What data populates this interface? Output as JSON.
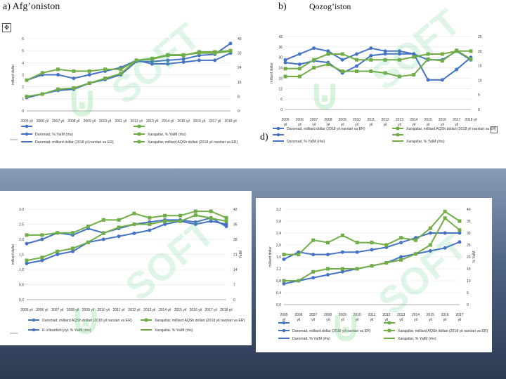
{
  "panel_labels": {
    "a": "a) Afg’oniston",
    "b": "b)",
    "b_country": "Qozog’iston",
    "d": "d)"
  },
  "anchor_icon": "move-anchor-icon",
  "watermark": {
    "text": "SOFT",
    "color": "#5ccf78"
  },
  "colors": {
    "blue": "#4472c4",
    "green": "#70ad47",
    "axis": "#999999",
    "text": "#333333"
  },
  "chart_data": [
    {
      "id": "afg",
      "type": "line",
      "categories": [
        "2005 yil",
        "2006 yil",
        "2007 yil",
        "2008 yil",
        "2009 yil",
        "2010 yil",
        "2011 yil",
        "2012 yil",
        "2013 yil",
        "2014 yil",
        "2015 yil",
        "2016 yil",
        "2017 yil",
        "2018 yil"
      ],
      "xtick_labels": [
        "2005 yil",
        "2006 yil",
        "2007 yil",
        "2008 yil",
        "2009 yil",
        "2010 yil",
        "2011 yil",
        "2012 yil",
        "2013 yil",
        "2014 yil",
        "2015 yil",
        "2016 yil",
        "2017 yil",
        "2018 yil"
      ],
      "ylabel": "milliard dollar",
      "ylim": [
        0,
        6
      ],
      "yticks": [
        "0",
        "1",
        "2",
        "3",
        "4",
        "5",
        "6"
      ],
      "y2lim": [
        0,
        40
      ],
      "y2ticks": [
        "0",
        "8",
        "16",
        "24",
        "32",
        "40"
      ],
      "series": [
        {
          "name": "Daromad, % YaIM (rhs)",
          "color": "blue",
          "axis": "right",
          "values": [
            17,
            20,
            20,
            18,
            20,
            22,
            24,
            28,
            26,
            26,
            27,
            28,
            28,
            32
          ]
        },
        {
          "name": "Daromad, milliard dollar (2018 yil narxlari va ER)",
          "color": "blue",
          "axis": "left",
          "values": [
            1.1,
            1.4,
            1.7,
            1.8,
            2.3,
            2.6,
            3.0,
            4.1,
            4.1,
            4.2,
            4.3,
            4.6,
            4.7,
            5.6
          ]
        },
        {
          "name": "Xarajatlar, % YaIM (rhs)",
          "color": "green",
          "axis": "right",
          "values": [
            17,
            21,
            23,
            22,
            22,
            23,
            23,
            28,
            29,
            31,
            31,
            32,
            32,
            33
          ]
        },
        {
          "name": "Xarajatlar, milliard AQSh dollari (2018 yil narxlari va ER)",
          "color": "green",
          "axis": "left",
          "values": [
            1.2,
            1.4,
            1.8,
            1.9,
            2.3,
            2.7,
            3.1,
            4.2,
            4.3,
            4.6,
            4.6,
            4.9,
            4.9,
            5.0
          ]
        }
      ],
      "legend": [
        {
          "label": "",
          "color": "blue",
          "marker": "circle"
        },
        {
          "label": "",
          "color": "green",
          "marker": "square"
        },
        {
          "label": "Daromad, % YaIM (rhs)",
          "color": "blue",
          "marker": "circle"
        },
        {
          "label": "Xarajatlar, % YaIM (rhs)",
          "color": "green",
          "marker": "square"
        },
        {
          "label": "Daromad, milliard dollar (2018 yil narxlari va ER)",
          "color": "blue",
          "marker": "none"
        },
        {
          "label": "Xarajatlar, milliard AQSh dollari (2018 yil narxlari va ER)",
          "color": "green",
          "marker": "square"
        }
      ],
      "note": "Manba:"
    },
    {
      "id": "kaz",
      "type": "line",
      "categories": [
        "2005",
        "2006",
        "2007",
        "2008",
        "2009",
        "2010",
        "2011",
        "2012",
        "2013",
        "2014",
        "2015",
        "2016",
        "2017",
        "2018 yil"
      ],
      "xtick_labels": [
        "2005",
        "2006",
        "2007",
        "2008",
        "2009",
        "2010",
        "2011",
        "2012",
        "2013",
        "2014",
        "2015",
        "2016",
        "2017",
        "2018 yil"
      ],
      "xtick_sub": [
        "yil",
        "yil",
        "yil",
        "yil",
        "yil",
        "yil",
        "yil",
        "yil",
        "yil",
        "yil",
        "yil",
        "yil",
        "yil",
        ""
      ],
      "ylabel": "milliard dollar",
      "ylim": [
        0,
        42
      ],
      "yticks": [
        "0",
        "6",
        "12",
        "18",
        "24",
        "30",
        "36",
        "42"
      ],
      "y2lim": [
        0,
        25
      ],
      "y2ticks": [
        "0",
        "5",
        "10",
        "15",
        "20",
        "25"
      ],
      "series": [
        {
          "name": "Daromad, milliard dollar (2018 yil narxlari va ER)",
          "color": "blue",
          "axis": "left",
          "values": [
            27,
            26,
            28,
            27,
            21,
            25,
            31,
            32,
            32,
            32,
            17,
            17,
            23,
            30
          ]
        },
        {
          "name": "Daromad, % YaIM (rhs)",
          "color": "blue",
          "axis": "right",
          "values": [
            17,
            19,
            21,
            20,
            17,
            19,
            21,
            20,
            20,
            19,
            17,
            17,
            20,
            17
          ]
        },
        {
          "name": "Xarajatlar, milliard AQSh dollari (2018 yil narxlari va ER)",
          "color": "green",
          "axis": "left",
          "values": [
            19,
            19,
            24,
            26,
            22,
            22,
            22,
            21,
            19,
            20,
            29,
            28,
            34,
            29
          ]
        },
        {
          "name": "Xarajatlar, % YaIM (rhs)",
          "color": "green",
          "axis": "right",
          "values": [
            14,
            14,
            17,
            19,
            19,
            17,
            17,
            17,
            17,
            18,
            19,
            19,
            20,
            20
          ]
        }
      ],
      "legend": [
        {
          "label": "Daromad, milliard dollar (2018 yil narxlari va ER)",
          "color": "blue",
          "marker": "circle"
        },
        {
          "label": "Xarajatlar, milliard AQSh dollari (2018 yil narxlari va ER)",
          "color": "green",
          "marker": "square"
        },
        {
          "label": "",
          "color": "blue",
          "marker": "circle"
        },
        {
          "label": "",
          "color": "green",
          "marker": "square"
        },
        {
          "label": "Daromad, % YaIM (rhs)",
          "color": "blue",
          "marker": "none"
        },
        {
          "label": "Xarajatlar, % YaIM (rhs)",
          "color": "green",
          "marker": "none"
        }
      ],
      "note": ""
    },
    {
      "id": "c",
      "type": "line",
      "categories": [
        "2005 yil",
        "2006 yil",
        "2007 yil",
        "2008 yil",
        "2009 yil",
        "2010 yil",
        "2011 yil",
        "2012 yil",
        "2013 yil",
        "2014 yil",
        "2015 yil",
        "2016 yil",
        "2017 yil",
        "2018 yil"
      ],
      "xtick_labels": [
        "2005 yil",
        "2006 yil",
        "2007 yil",
        "2008 yil",
        "2009 yil",
        "2010 yil",
        "2011 yil",
        "2012 yil",
        "2013 yil",
        "2014 yil",
        "2015 yil",
        "2016 yil",
        "2017 yil",
        "2018 yil"
      ],
      "ylabel": "milliard dollar",
      "ylim": [
        0,
        3.0
      ],
      "yticks": [
        "0,0",
        "0,5",
        "1,0",
        "1,5",
        "2,0",
        "2,5",
        "3,0"
      ],
      "y2lim": [
        0,
        42
      ],
      "y2ticks": [
        "0",
        "7",
        "14",
        "21",
        "28",
        "35",
        "42"
      ],
      "y2label": "YaIM",
      "series": [
        {
          "name": "Daromad, milliard AQSh dollari (2018 yil narxlari va ER)",
          "color": "blue",
          "axis": "left",
          "values": [
            1.2,
            1.3,
            1.5,
            1.6,
            1.9,
            2.0,
            2.1,
            2.2,
            2.3,
            2.5,
            2.6,
            2.5,
            2.6,
            2.5
          ]
        },
        {
          "name": "R o’tkazilish joyi, % YaIM (rhs)",
          "color": "blue",
          "axis": "right",
          "values": [
            26,
            28,
            31,
            30,
            33,
            31,
            33,
            35,
            36,
            37,
            37,
            36,
            38,
            34
          ]
        },
        {
          "name": "Xarajatlar, milliard AQSh dollari (2018 yil narxlari va ER)",
          "color": "green",
          "axis": "left",
          "values": [
            1.3,
            1.4,
            1.6,
            1.7,
            1.9,
            2.2,
            2.4,
            2.5,
            2.5,
            2.6,
            2.6,
            2.8,
            2.7,
            2.6
          ]
        },
        {
          "name": "Xarajatlar, % YaIM (rhs)",
          "color": "green",
          "axis": "right",
          "values": [
            30,
            30,
            31,
            31,
            34,
            37,
            37,
            40,
            38,
            39,
            39,
            41,
            41,
            38
          ]
        }
      ],
      "legend": [
        {
          "label": "Daromad, milliard AQSh dollari (2018 yil narxlari va ER)",
          "color": "blue",
          "marker": "circle"
        },
        {
          "label": "Xarajatlar, milliard AQSh dollari (2018 yil narxlari va ER)",
          "color": "green",
          "marker": "square"
        },
        {
          "label": "R o’tkazilish joyi, % YaIM (rhs)",
          "color": "blue",
          "marker": "circle"
        },
        {
          "label": "Xarajatlar, % YaIM (rhs)",
          "color": "green",
          "marker": "none"
        }
      ],
      "note": "Manba:"
    },
    {
      "id": "d",
      "type": "line",
      "categories": [
        "2005",
        "2006",
        "2007",
        "2008",
        "2009",
        "2010",
        "2011",
        "2012",
        "2013",
        "2014",
        "2015",
        "2016",
        "2017"
      ],
      "xtick_labels": [
        "2005",
        "2006",
        "2007",
        "2008",
        "2009",
        "2010",
        "2011",
        "2012",
        "2013",
        "2014",
        "2015",
        "2016",
        "2017"
      ],
      "xtick_sub": [
        "yil",
        "yil",
        "yil",
        "yil",
        "yil",
        "yil",
        "yil",
        "yil",
        "yil",
        "yil",
        "yil",
        "yil",
        "yil"
      ],
      "ylabel": "milliard dollar",
      "ylim": [
        0,
        3.2
      ],
      "yticks": [
        "0,0",
        "0,4",
        "0,8",
        "1,2",
        "1,6",
        "2,0",
        "2,4",
        "2,8",
        "3,2"
      ],
      "y2lim": [
        0,
        40
      ],
      "y2ticks": [
        "0",
        "5",
        "10",
        "15",
        "20",
        "25",
        "30",
        "35",
        "40"
      ],
      "y2label": "% YaIM",
      "series": [
        {
          "name": "Daromad, milliard dollar (2018 yil narxlari va ER)",
          "color": "blue",
          "axis": "left",
          "values": [
            0.7,
            0.8,
            0.9,
            1.0,
            1.1,
            1.2,
            1.3,
            1.4,
            1.6,
            1.7,
            1.8,
            1.9,
            2.1
          ]
        },
        {
          "name": "Daromad, % YaIM (rhs)",
          "color": "blue",
          "axis": "right",
          "values": [
            19,
            22,
            21,
            21,
            22,
            22,
            23,
            24,
            26,
            28,
            30,
            30,
            30
          ]
        },
        {
          "name": "Xarajatlar, milliard AQSh dollari (2018 yil narxlari va ER)",
          "color": "green",
          "axis": "left",
          "values": [
            0.8,
            0.8,
            1.1,
            1.2,
            1.2,
            1.2,
            1.3,
            1.4,
            1.5,
            1.7,
            2.0,
            2.9,
            2.5
          ]
        },
        {
          "name": "Xarajatlar, % YaIM (rhs)",
          "color": "green",
          "axis": "right",
          "values": [
            21,
            21,
            27,
            26,
            29,
            26,
            26,
            25,
            28,
            27,
            32,
            39,
            35
          ]
        }
      ],
      "legend": [
        {
          "label": "",
          "color": "blue",
          "marker": "circle"
        },
        {
          "label": "",
          "color": "green",
          "marker": "square"
        },
        {
          "label": "Daromad, milliard dollar (2018 yil narxlari va ER)",
          "color": "blue",
          "marker": "circle"
        },
        {
          "label": "Xarajatlar, milliard AQSh dollari (2018 yil narxlari va ER)",
          "color": "green",
          "marker": "square"
        },
        {
          "label": "Daromad, % YaIM (rhs)",
          "color": "blue",
          "marker": "none"
        },
        {
          "label": "Xarajatlar, % YaIM (rhs)",
          "color": "green",
          "marker": "none"
        }
      ],
      "note": ""
    }
  ]
}
